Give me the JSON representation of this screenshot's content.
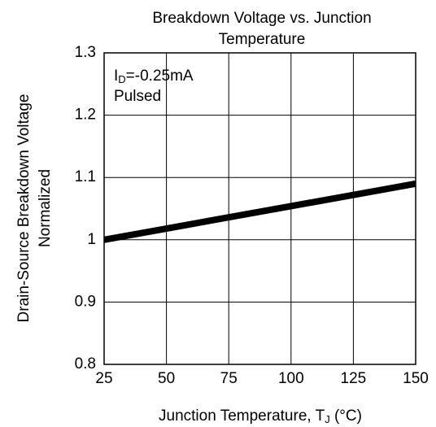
{
  "chart_data": {
    "type": "line",
    "title": [
      "Breakdown Voltage vs. Junction",
      "Temperature"
    ],
    "ylabel": [
      "Drain-Source Breakdown Voltage",
      "Normalized"
    ],
    "xlabel": {
      "main": "Junction Temperature, T",
      "sub": "J",
      "tail": " (°C)"
    },
    "annotation": {
      "main": "I",
      "sub": "D",
      "tail": "=-0.25mA"
    },
    "annotation2": "Pulsed",
    "x": [
      25,
      50,
      75,
      100,
      125,
      150
    ],
    "series": [
      {
        "color": "#000000",
        "values": [
          1.0,
          1.018,
          1.036,
          1.054,
          1.072,
          1.09
        ]
      }
    ],
    "xlim": [
      25,
      150
    ],
    "xticks": [
      25,
      50,
      75,
      100,
      125,
      150
    ],
    "ylim": [
      0.8,
      1.3
    ],
    "yticks": [
      0.8,
      0.9,
      1,
      1.1,
      1.2,
      1.3
    ],
    "grid": true
  }
}
